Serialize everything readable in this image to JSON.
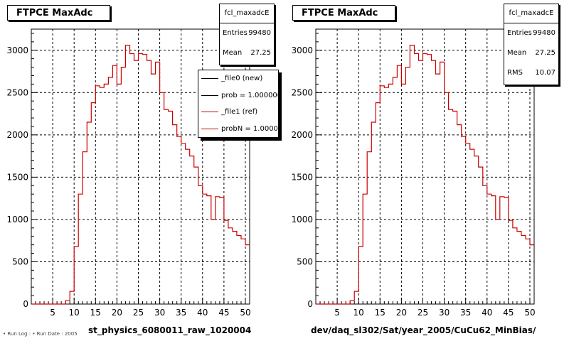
{
  "chart_data": [
    {
      "type": "histogram",
      "title": "FTPCE MaxAdc",
      "xlabel": "st_physics_6080011_raw_1020004",
      "ylabel": "",
      "xlim": [
        0,
        51
      ],
      "ylim": [
        0,
        3250
      ],
      "xticks": [
        5,
        10,
        15,
        20,
        25,
        30,
        35,
        40,
        45,
        50
      ],
      "yticks": [
        0,
        500,
        1000,
        1500,
        2000,
        2500,
        3000
      ],
      "grid": true,
      "bin_width": 1,
      "stats": {
        "name": "fcl_maxadcE",
        "entries_label": "Entries",
        "entries": "99480",
        "mean_label": "Mean",
        "mean": "27.25"
      },
      "legend": {
        "position": "top-right",
        "entries": [
          {
            "label": "_file0 (new)",
            "color": "#000000"
          },
          {
            "label": "prob = 1.000000",
            "color": "#000000"
          },
          {
            "label": "_file1 (ref)",
            "color": "#cc0000"
          },
          {
            "label": "probN = 1.000000",
            "color": "#cc0000"
          }
        ]
      },
      "series": [
        {
          "color": "#cc0000",
          "values": [
            0,
            0,
            0,
            0,
            0,
            0,
            0,
            0,
            40,
            150,
            680,
            1300,
            1800,
            2150,
            2380,
            2580,
            2560,
            2600,
            2680,
            2820,
            2600,
            2800,
            3060,
            2960,
            2880,
            2960,
            2950,
            2880,
            2720,
            2860,
            2500,
            2300,
            2280,
            2120,
            1980,
            1900,
            1830,
            1750,
            1620,
            1400,
            1300,
            1280,
            1000,
            1270,
            1260,
            990,
            900,
            860,
            810,
            770,
            700
          ]
        }
      ]
    },
    {
      "type": "histogram",
      "title": "FTPCE MaxAdc",
      "xlabel": "dev/daq_sl302/Sat/year_2005/CuCu62_MinBias/",
      "ylabel": "",
      "xlim": [
        0,
        51
      ],
      "ylim": [
        0,
        3250
      ],
      "xticks": [
        5,
        10,
        15,
        20,
        25,
        30,
        35,
        40,
        45,
        50
      ],
      "yticks": [
        0,
        500,
        1000,
        1500,
        2000,
        2500,
        3000
      ],
      "grid": true,
      "bin_width": 1,
      "stats": {
        "name": "fcl_maxadcE",
        "entries_label": "Entries",
        "entries": "99480",
        "mean_label": "Mean",
        "mean": "27.25",
        "rms_label": "RMS",
        "rms": "10.07"
      },
      "series": [
        {
          "color": "#cc0000",
          "values": [
            0,
            0,
            0,
            0,
            0,
            0,
            0,
            0,
            40,
            150,
            680,
            1300,
            1800,
            2150,
            2380,
            2580,
            2560,
            2600,
            2680,
            2820,
            2600,
            2800,
            3060,
            2960,
            2880,
            2960,
            2950,
            2880,
            2720,
            2860,
            2500,
            2300,
            2280,
            2120,
            1980,
            1900,
            1830,
            1750,
            1620,
            1400,
            1300,
            1280,
            1000,
            1270,
            1260,
            990,
            900,
            860,
            810,
            770,
            700
          ]
        }
      ]
    }
  ],
  "footnote": "• Run Log : • Run Date : 2005"
}
